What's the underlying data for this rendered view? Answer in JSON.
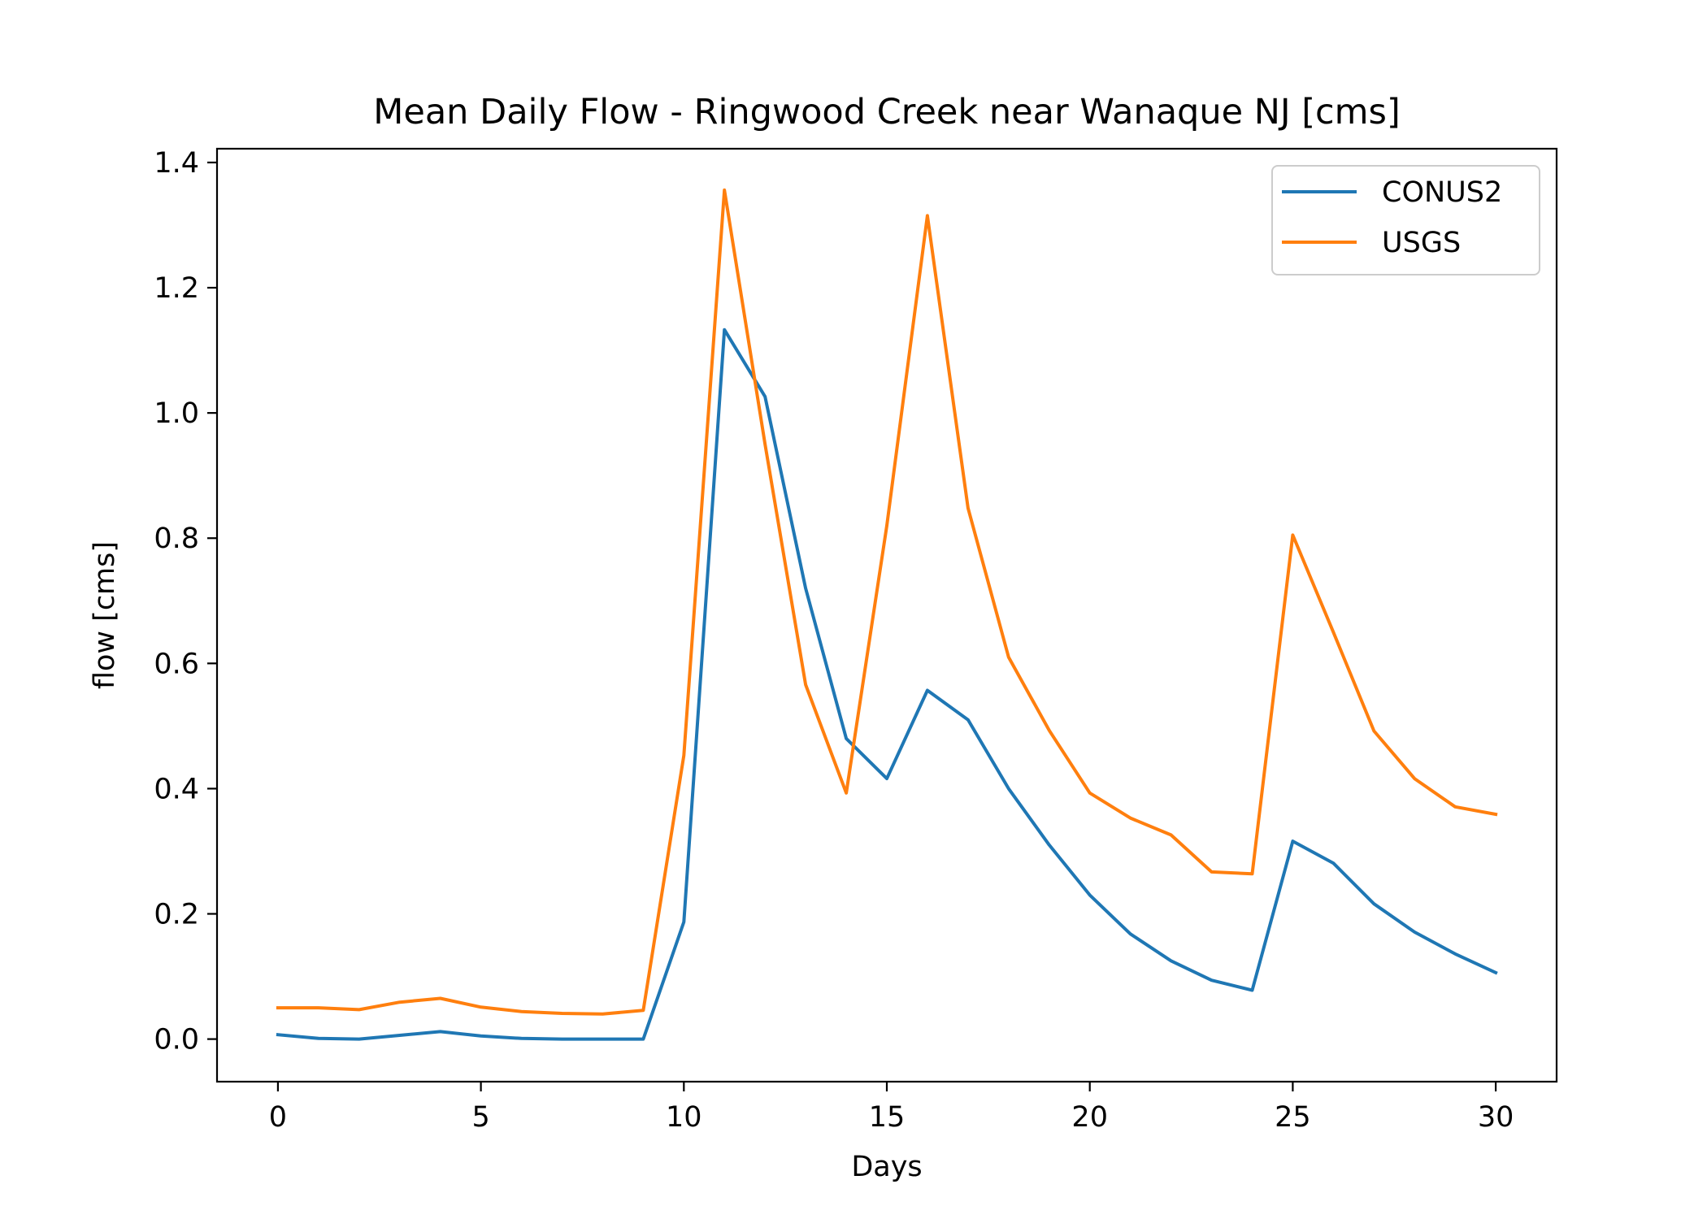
{
  "chart_data": {
    "type": "line",
    "title": "Mean Daily Flow - Ringwood Creek near Wanaque NJ [cms]",
    "xlabel": "Days",
    "ylabel": "flow [cms]",
    "xlim": [
      -1.5,
      31.5
    ],
    "ylim": [
      -0.068,
      1.422
    ],
    "xticks": [
      0,
      5,
      10,
      15,
      20,
      25,
      30
    ],
    "xtick_labels": [
      "0",
      "5",
      "10",
      "15",
      "20",
      "25",
      "30"
    ],
    "yticks": [
      0.0,
      0.2,
      0.4,
      0.6,
      0.8,
      1.0,
      1.2,
      1.4
    ],
    "ytick_labels": [
      "0.0",
      "0.2",
      "0.4",
      "0.6",
      "0.8",
      "1.0",
      "1.2",
      "1.4"
    ],
    "grid": false,
    "legend_position": "top-right",
    "x": [
      0,
      1,
      2,
      3,
      4,
      5,
      6,
      7,
      8,
      9,
      10,
      11,
      12,
      13,
      14,
      15,
      16,
      17,
      18,
      19,
      20,
      21,
      22,
      23,
      24,
      25,
      26,
      27,
      28,
      29,
      30
    ],
    "series": [
      {
        "name": "CONUS2",
        "color": "#1f77b4",
        "values": [
          0.007,
          0.001,
          0.0,
          0.006,
          0.012,
          0.005,
          0.001,
          0.0,
          0.0,
          0.0,
          0.187,
          1.133,
          1.026,
          0.72,
          0.48,
          0.416,
          0.557,
          0.51,
          0.4,
          0.31,
          0.23,
          0.168,
          0.125,
          0.094,
          0.078,
          0.316,
          0.281,
          0.216,
          0.171,
          0.136,
          0.106
        ]
      },
      {
        "name": "USGS",
        "color": "#ff7f0e",
        "values": [
          0.05,
          0.05,
          0.047,
          0.059,
          0.065,
          0.051,
          0.044,
          0.041,
          0.04,
          0.046,
          0.453,
          1.356,
          0.95,
          0.566,
          0.393,
          0.82,
          1.315,
          0.848,
          0.61,
          0.493,
          0.393,
          0.353,
          0.326,
          0.267,
          0.264,
          0.805,
          0.65,
          0.492,
          0.416,
          0.371,
          0.359
        ]
      }
    ]
  }
}
